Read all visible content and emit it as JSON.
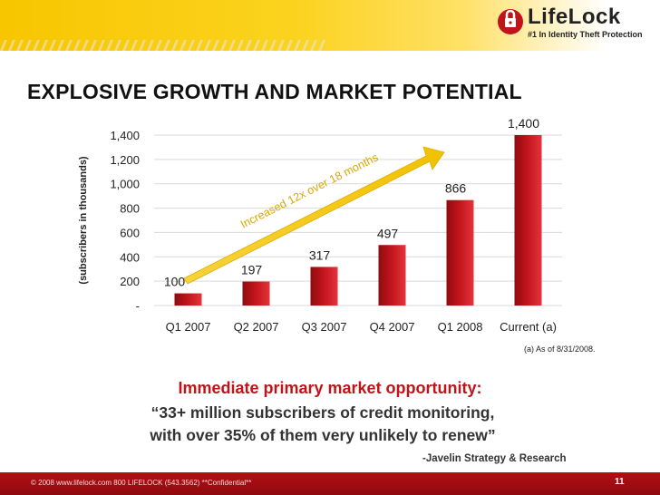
{
  "logo": {
    "wordmark": "LifeLock",
    "tagline": "#1 In Identity Theft Protection"
  },
  "slide": {
    "title": "EXPLOSIVE GROWTH AND MARKET POTENTIAL",
    "footnote": "(a) As of 8/31/2008.",
    "subtitle_line1": "Immediate primary market opportunity:",
    "subtitle_line2": "“33+ million subscribers of credit monitoring,",
    "subtitle_line3": "with over 35% of them very unlikely to renew”",
    "source": "-Javelin Strategy & Research",
    "footer": "© 2008   www.lifelock.com   800 LIFELOCK (543.3562)   **Confidential**",
    "page_number": "11"
  },
  "colors": {
    "header_yellow": "#f7c600",
    "bar_red": "#c0141a",
    "arrow_gold": "#f2c200",
    "footer_red": "#b30f14"
  },
  "chart_data": {
    "type": "bar",
    "categories": [
      "Q1 2007",
      "Q2 2007",
      "Q3 2007",
      "Q4 2007",
      "Q1 2008",
      "Current (a)"
    ],
    "values": [
      100,
      197,
      317,
      497,
      866,
      1400
    ],
    "data_labels": [
      "100",
      "197",
      "317",
      "497",
      "866",
      "1,400"
    ],
    "ylabel": "(subscribers in thousands)",
    "ylim": [
      0,
      1400
    ],
    "yticks": [
      0,
      200,
      400,
      600,
      800,
      1000,
      1200,
      1400
    ],
    "ytick_labels": [
      "-",
      "200",
      "400",
      "600",
      "800",
      "1,000",
      "1,200",
      "1,400"
    ],
    "annotation": "Increased 12x over 18 months",
    "grid": true,
    "legend": "none"
  }
}
